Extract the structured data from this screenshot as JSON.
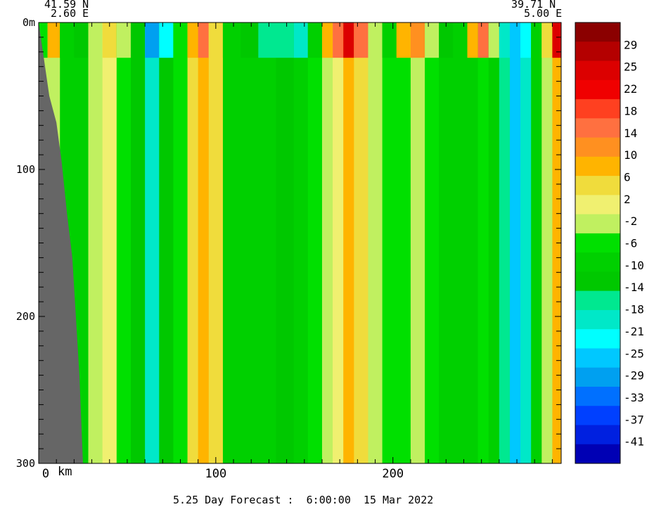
{
  "header": {
    "left_lat": "41.59 N",
    "left_lon": "2.60 E",
    "right_lat": "39.71 N",
    "right_lon": "5.00 E"
  },
  "footer": "5.25 Day Forecast :  6:00:00  15 Mar 2022",
  "chart_data": {
    "type": "heatmap",
    "title": "",
    "xlabel": "km",
    "ylabel": "",
    "x_ticks": [
      0,
      100,
      200
    ],
    "x_tick_labels": [
      "0",
      "100",
      "200"
    ],
    "x_tick_suffix": " km",
    "xlim": [
      0,
      295
    ],
    "y_ticks": [
      0,
      100,
      200,
      300
    ],
    "y_tick_labels": [
      "0m",
      "100",
      "200",
      "300"
    ],
    "ylim": [
      0,
      300
    ],
    "colorbar": {
      "labels": [
        "29",
        "25",
        "22",
        "18",
        "14",
        "10",
        "6",
        "2",
        "-2",
        "-6",
        "-10",
        "-14",
        "-18",
        "-21",
        "-25",
        "-29",
        "-33",
        "-37",
        "-41"
      ],
      "colors": [
        "#8b0000",
        "#b40000",
        "#dc0000",
        "#f00000",
        "#ff4020",
        "#ff7040",
        "#ff9020",
        "#ffb400",
        "#f0dc3c",
        "#f0f070",
        "#c0f060",
        "#00e000",
        "#00d000",
        "#00c800",
        "#00e890",
        "#00e8c8",
        "#00ffff",
        "#00c8ff",
        "#00a0f0",
        "#0070ff",
        "#0040ff",
        "#0020e0",
        "#0000b4"
      ]
    },
    "columns": [
      {
        "x": 0,
        "top": "-6",
        "v": "-2"
      },
      {
        "x": 5,
        "top": "10",
        "v": "-2"
      },
      {
        "x": 12,
        "top": "-10",
        "v": "-10"
      },
      {
        "x": 20,
        "top": "-14",
        "v": "-10"
      },
      {
        "x": 28,
        "top": "-2",
        "v": "-2"
      },
      {
        "x": 36,
        "top": "6",
        "v": "2"
      },
      {
        "x": 44,
        "top": "-2",
        "v": "-6"
      },
      {
        "x": 52,
        "top": "-14",
        "v": "-14"
      },
      {
        "x": 60,
        "top": "-33",
        "v": "-21"
      },
      {
        "x": 68,
        "top": "-25",
        "v": "-14"
      },
      {
        "x": 76,
        "top": "-6",
        "v": "-6"
      },
      {
        "x": 84,
        "top": "10",
        "v": "6"
      },
      {
        "x": 90,
        "top": "18",
        "v": "10"
      },
      {
        "x": 96,
        "top": "6",
        "v": "6"
      },
      {
        "x": 104,
        "top": "-10",
        "v": "-10"
      },
      {
        "x": 114,
        "top": "-14",
        "v": "-10"
      },
      {
        "x": 124,
        "top": "-18",
        "v": "-10"
      },
      {
        "x": 134,
        "top": "-18",
        "v": "-14"
      },
      {
        "x": 144,
        "top": "-21",
        "v": "-10"
      },
      {
        "x": 152,
        "top": "-10",
        "v": "-6"
      },
      {
        "x": 160,
        "top": "10",
        "v": "-2"
      },
      {
        "x": 166,
        "top": "18",
        "v": "2"
      },
      {
        "x": 172,
        "top": "29",
        "v": "10"
      },
      {
        "x": 178,
        "top": "18",
        "v": "6"
      },
      {
        "x": 186,
        "top": "-2",
        "v": "-2"
      },
      {
        "x": 194,
        "top": "-10",
        "v": "-6"
      },
      {
        "x": 202,
        "top": "10",
        "v": "-6"
      },
      {
        "x": 210,
        "top": "14",
        "v": "-2"
      },
      {
        "x": 218,
        "top": "-2",
        "v": "-6"
      },
      {
        "x": 226,
        "top": "-14",
        "v": "-10"
      },
      {
        "x": 234,
        "top": "-10",
        "v": "-10"
      },
      {
        "x": 242,
        "top": "10",
        "v": "-10"
      },
      {
        "x": 248,
        "top": "18",
        "v": "-6"
      },
      {
        "x": 254,
        "top": "-2",
        "v": "-10"
      },
      {
        "x": 260,
        "top": "-21",
        "v": "-18"
      },
      {
        "x": 266,
        "top": "-29",
        "v": "-29"
      },
      {
        "x": 272,
        "top": "-25",
        "v": "-21"
      },
      {
        "x": 278,
        "top": "-10",
        "v": "-10"
      },
      {
        "x": 284,
        "top": "6",
        "v": "-2"
      },
      {
        "x": 290,
        "top": "29",
        "v": "10"
      },
      {
        "x": 295,
        "top": "18",
        "v": "6"
      }
    ],
    "land_boundary": [
      [
        0,
        0
      ],
      [
        6,
        50
      ],
      [
        10,
        68
      ],
      [
        13,
        95
      ],
      [
        16,
        130
      ],
      [
        19,
        160
      ],
      [
        21,
        200
      ],
      [
        23,
        240
      ],
      [
        24,
        270
      ],
      [
        25,
        300
      ]
    ],
    "grid": false
  }
}
